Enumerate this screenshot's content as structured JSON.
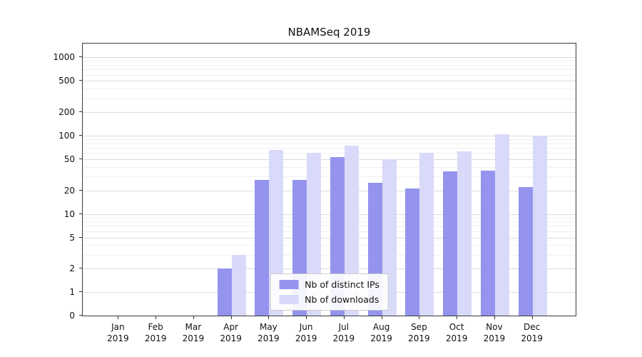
{
  "title": "NBAMSeq 2019",
  "chart_data": {
    "type": "bar",
    "title": "NBAMSeq 2019",
    "scale": "symlog",
    "grid": true,
    "legend_position": "lower center",
    "ylim": [
      0,
      1500
    ],
    "yticks": [
      0,
      1,
      2,
      5,
      10,
      20,
      50,
      100,
      200,
      500,
      1000
    ],
    "categories": [
      {
        "label": "Jan",
        "sub": "2019"
      },
      {
        "label": "Feb",
        "sub": "2019"
      },
      {
        "label": "Mar",
        "sub": "2019"
      },
      {
        "label": "Apr",
        "sub": "2019"
      },
      {
        "label": "May",
        "sub": "2019"
      },
      {
        "label": "Jun",
        "sub": "2019"
      },
      {
        "label": "Jul",
        "sub": "2019"
      },
      {
        "label": "Aug",
        "sub": "2019"
      },
      {
        "label": "Sep",
        "sub": "2019"
      },
      {
        "label": "Oct",
        "sub": "2019"
      },
      {
        "label": "Nov",
        "sub": "2019"
      },
      {
        "label": "Dec",
        "sub": "2019"
      }
    ],
    "series": [
      {
        "name": "Nb of distinct IPs",
        "color": "#9494ee",
        "values": [
          0,
          0,
          0,
          2,
          27,
          27,
          53,
          25,
          21,
          35,
          36,
          22
        ]
      },
      {
        "name": "Nb of downloads",
        "color": "#d9d9f9",
        "values": [
          0,
          0,
          0,
          3,
          65,
          60,
          75,
          50,
          60,
          63,
          105,
          100
        ]
      }
    ],
    "colors": {
      "grid_major": "#dcdcdc",
      "grid_minor": "#f0f0f0",
      "spine": "#3a3a3a"
    }
  }
}
